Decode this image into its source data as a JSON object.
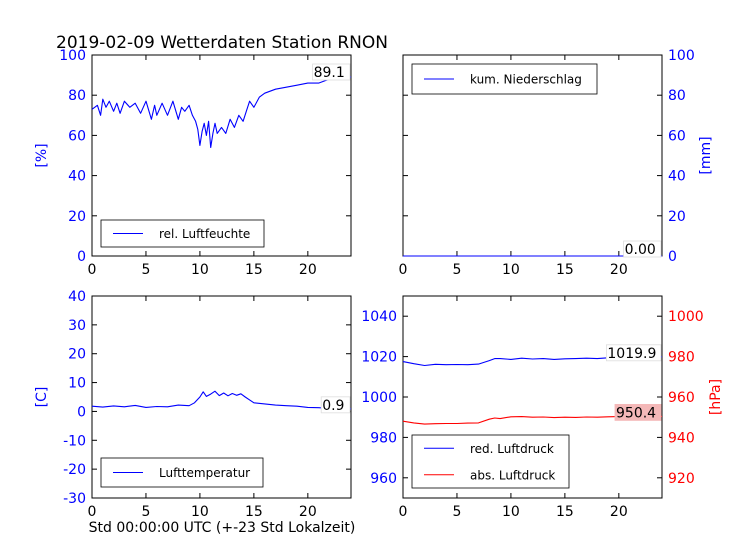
{
  "title": "2019-02-09 Wetterdaten Station RNON",
  "xlabel": "Std 00:00:00 UTC (+-23 Std Lokalzeit)",
  "colors": {
    "blue": "#0000ff",
    "red": "#ff0000"
  },
  "chart_data": [
    {
      "type": "line",
      "id": "humidity",
      "ylabel": "[%]",
      "ylabel_side": "left",
      "xlim": [
        0,
        24
      ],
      "ylim": [
        0,
        100
      ],
      "xticks": [
        0,
        5,
        10,
        15,
        20
      ],
      "yticks": [
        0,
        20,
        40,
        60,
        80,
        100
      ],
      "legend_position": "lower-left",
      "annotation": "89.1",
      "series": [
        {
          "name": "rel. Luftfeuchte",
          "color": "#0000ff",
          "x": [
            0,
            0.5,
            0.8,
            1,
            1.3,
            1.6,
            2,
            2.3,
            2.6,
            3,
            3.5,
            4,
            4.5,
            5,
            5.5,
            5.8,
            6,
            6.5,
            7,
            7.5,
            8,
            8.3,
            8.6,
            9,
            9.3,
            9.6,
            9.8,
            10,
            10.2,
            10.4,
            10.6,
            10.8,
            11,
            11.2,
            11.4,
            11.6,
            12,
            12.4,
            12.8,
            13.2,
            13.6,
            14,
            14.3,
            14.6,
            15,
            15.5,
            16,
            17,
            18,
            19,
            20,
            21,
            22,
            23,
            24
          ],
          "y": [
            73,
            75,
            70,
            78,
            74,
            77,
            72,
            76,
            71,
            77,
            74,
            76,
            71,
            77,
            68,
            75,
            70,
            76,
            70,
            77,
            68,
            74,
            72,
            75,
            70,
            67,
            63,
            55,
            62,
            66,
            60,
            67,
            54,
            61,
            66,
            61,
            64,
            61,
            68,
            64,
            70,
            67,
            72,
            77,
            74,
            79,
            81,
            83,
            84,
            85,
            86,
            86,
            88,
            88,
            89.1
          ]
        }
      ]
    },
    {
      "type": "line",
      "id": "precip",
      "ylabel": "[mm]",
      "ylabel_side": "right",
      "xlim": [
        0,
        24
      ],
      "ylim": [
        0,
        100
      ],
      "xticks": [
        0,
        5,
        10,
        15,
        20
      ],
      "yticks": [
        0,
        20,
        40,
        60,
        80,
        100
      ],
      "legend_position": "upper-left",
      "annotation": "0.00",
      "series": [
        {
          "name": "kum. Niederschlag",
          "color": "#0000ff",
          "x": [
            0,
            24
          ],
          "y": [
            0,
            0
          ]
        }
      ]
    },
    {
      "type": "line",
      "id": "temperature",
      "ylabel": "[C]",
      "ylabel_side": "left",
      "xlim": [
        0,
        24
      ],
      "ylim": [
        -30,
        40
      ],
      "xticks": [
        0,
        5,
        10,
        15,
        20
      ],
      "yticks": [
        -30,
        -20,
        -10,
        0,
        10,
        20,
        30,
        40
      ],
      "legend_position": "lower-left",
      "annotation": "0.9",
      "series": [
        {
          "name": "Lufttemperatur",
          "color": "#0000ff",
          "x": [
            0,
            1,
            2,
            3,
            4,
            5,
            6,
            7,
            8,
            9,
            9.5,
            10,
            10.3,
            10.6,
            11,
            11.4,
            11.8,
            12.2,
            12.6,
            13,
            13.4,
            13.8,
            14.2,
            14.6,
            15,
            16,
            17,
            18,
            19,
            20,
            21,
            22,
            23,
            24
          ],
          "y": [
            1.8,
            1.5,
            1.9,
            1.6,
            2.1,
            1.4,
            1.7,
            1.6,
            2.2,
            2.0,
            3.0,
            5.0,
            6.8,
            5.2,
            6.0,
            7.0,
            5.5,
            6.4,
            5.4,
            6.2,
            5.6,
            6.1,
            5.0,
            4.0,
            3.0,
            2.6,
            2.2,
            2.0,
            1.8,
            1.4,
            1.3,
            1.1,
            1.0,
            0.9
          ]
        }
      ]
    },
    {
      "type": "line",
      "id": "pressure",
      "ylabel": "[hPa]",
      "ylabel_side": "right",
      "xlim": [
        0,
        24
      ],
      "ylim": [
        950,
        1050
      ],
      "ylim_right": [
        910,
        1010
      ],
      "xticks": [
        0,
        5,
        10,
        15,
        20
      ],
      "yticks": [
        960,
        980,
        1000,
        1020,
        1040
      ],
      "yticks_right": [
        920,
        940,
        960,
        980,
        1000
      ],
      "legend_position": "lower-left",
      "annotations": [
        {
          "text": "1019.9",
          "series": "red. Luftdruck"
        },
        {
          "text": "950.4",
          "series": "abs. Luftdruck"
        }
      ],
      "series": [
        {
          "name": "red. Luftdruck",
          "color": "#0000ff",
          "axis": "left",
          "x": [
            0,
            1,
            2,
            3,
            4,
            5,
            6,
            7,
            8,
            8.5,
            9,
            10,
            11,
            12,
            13,
            14,
            15,
            16,
            17,
            18,
            19,
            20,
            21,
            22,
            23,
            24
          ],
          "y": [
            1017.5,
            1016.5,
            1015.6,
            1016.2,
            1016.0,
            1016.1,
            1016.0,
            1016.3,
            1018.0,
            1019.0,
            1019.0,
            1018.6,
            1019.2,
            1018.8,
            1019.0,
            1018.6,
            1018.9,
            1019.0,
            1019.2,
            1019.0,
            1019.4,
            1019.5,
            1019.7,
            1019.8,
            1019.9,
            1019.9
          ]
        },
        {
          "name": "abs. Luftdruck",
          "color": "#ff0000",
          "axis": "right",
          "x": [
            0,
            1,
            2,
            3,
            4,
            5,
            6,
            7,
            8,
            8.5,
            9,
            10,
            11,
            12,
            13,
            14,
            15,
            16,
            17,
            18,
            19,
            20,
            21,
            22,
            23,
            24
          ],
          "y": [
            948.0,
            947.2,
            946.6,
            946.8,
            946.9,
            946.9,
            947.1,
            947.2,
            949.0,
            949.6,
            949.3,
            950.2,
            950.3,
            950.0,
            950.1,
            949.8,
            950.0,
            949.9,
            950.1,
            950.0,
            950.2,
            950.3,
            950.3,
            950.4,
            950.4,
            950.4
          ]
        }
      ]
    }
  ]
}
